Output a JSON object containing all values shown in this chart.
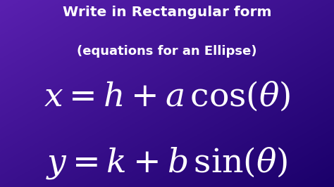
{
  "title_line1": "Write in Rectangular form",
  "title_line2": "(equations for an Ellipse)",
  "eq1": "$x = h + a\\,\\cos(\\theta)$",
  "eq2": "$y = k + b\\,\\sin(\\theta)$",
  "bg_tl": "#5a20b0",
  "bg_br": "#1a006a",
  "text_color": "#ffffff",
  "title_fontsize": 14.5,
  "title2_fontsize": 13,
  "eq_fontsize": 34,
  "figsize": [
    4.74,
    2.66
  ],
  "dpi": 100
}
